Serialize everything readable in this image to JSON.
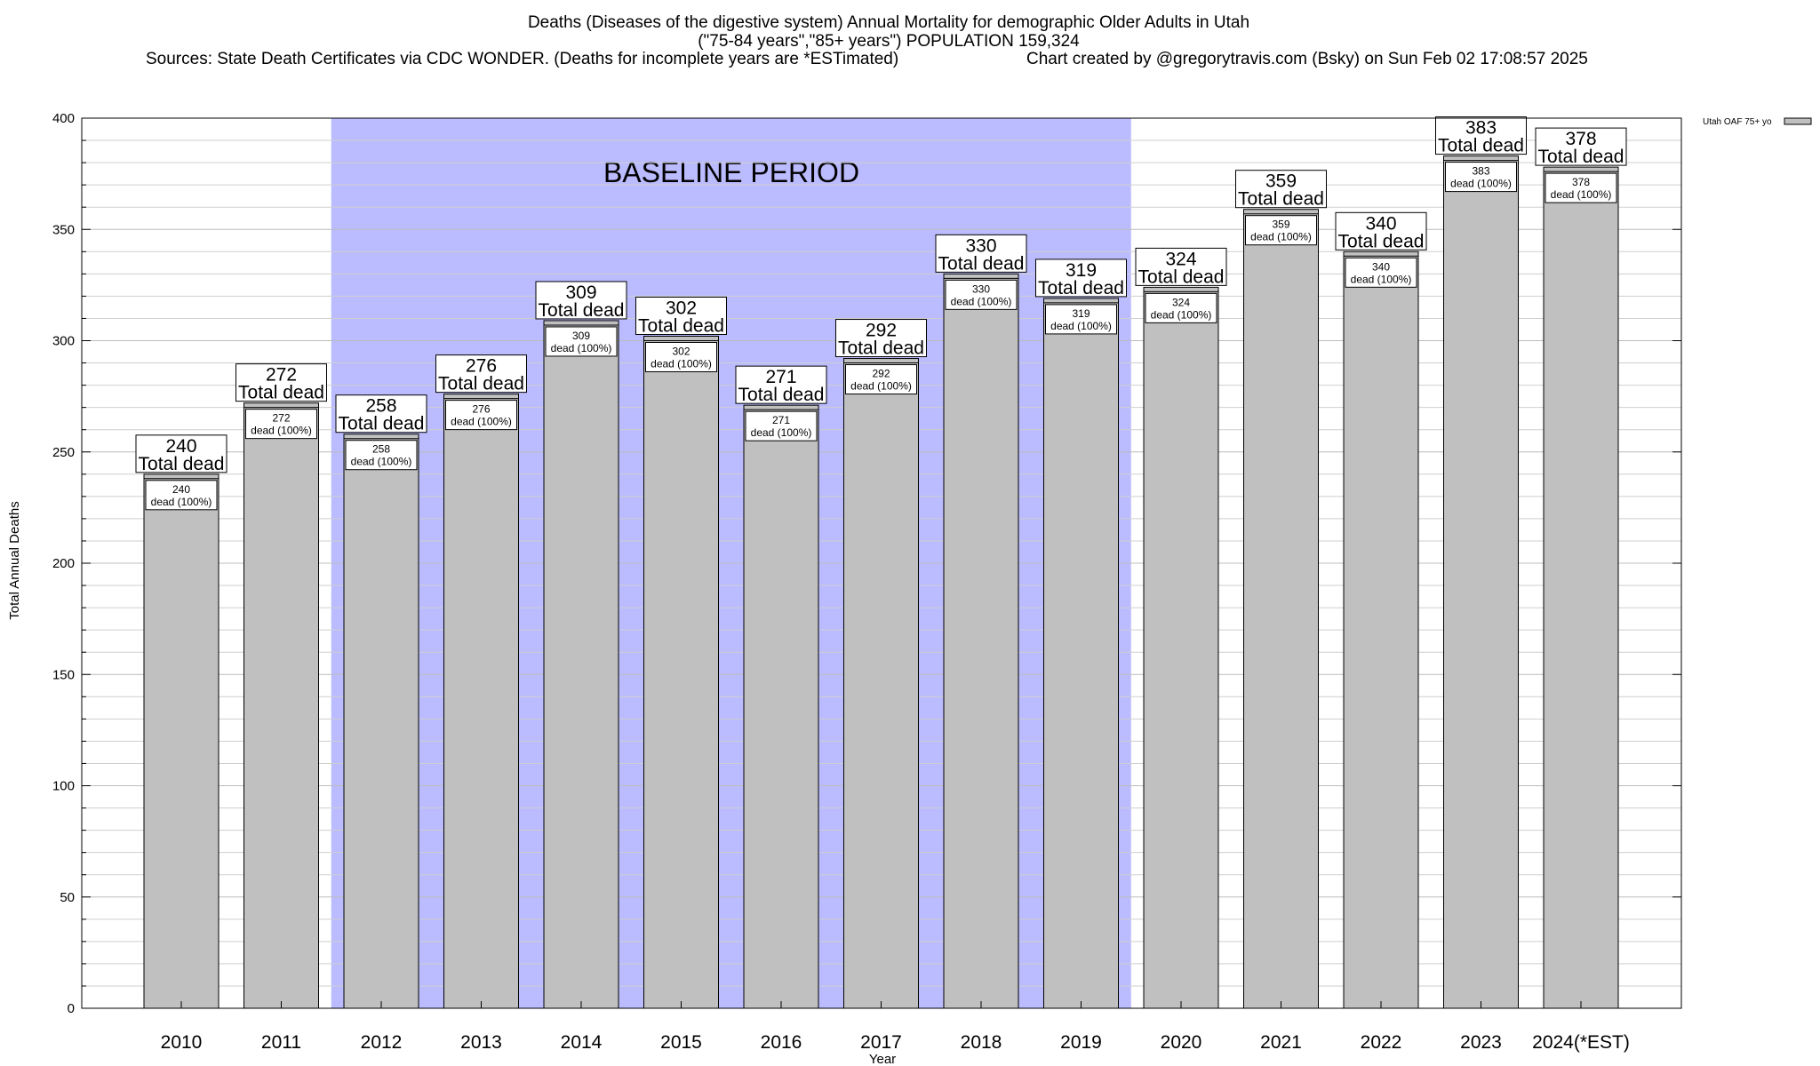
{
  "chart_data": {
    "type": "bar",
    "title_lines": [
      "Deaths (Diseases of the digestive system) Annual Mortality for demographic Older Adults in Utah",
      "(\"75-84 years\",\"85+ years\") POPULATION 159,324"
    ],
    "sources": "Sources: State Death Certificates via CDC WONDER. (Deaths for incomplete years are *ESTimated)",
    "credit": "Chart created by @gregorytravis.com (Bsky) on Sun Feb 02 17:08:57 2025",
    "xlabel": "Year",
    "ylabel": "Total Annual Deaths",
    "ylim": [
      0,
      400
    ],
    "yticks": [
      0,
      50,
      100,
      150,
      200,
      250,
      300,
      350,
      400
    ],
    "categories": [
      "2010",
      "2011",
      "2012",
      "2013",
      "2014",
      "2015",
      "2016",
      "2017",
      "2018",
      "2019",
      "2020",
      "2021",
      "2022",
      "2023",
      "2024(*EST)"
    ],
    "series": [
      {
        "name": "Utah OAF 75+ yo",
        "color": "#c0c0c0",
        "values": [
          240,
          272,
          258,
          276,
          309,
          302,
          271,
          292,
          330,
          319,
          324,
          359,
          340,
          383,
          378
        ]
      }
    ],
    "top_label_suffix": "Total dead",
    "inner_label_suffix": "dead (100%)",
    "baseline_period": {
      "label": "BASELINE PERIOD",
      "from": "2012",
      "to": "2019",
      "color": "#bbbbff"
    },
    "legend_position": "top-right",
    "grid": true
  }
}
